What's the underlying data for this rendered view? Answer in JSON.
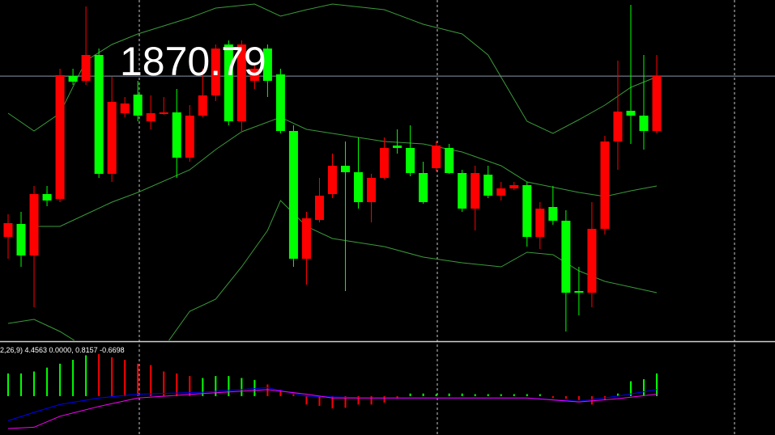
{
  "chart_data": {
    "type": "candlestick",
    "price_line": 1870.79,
    "ylim": [
      1838.2,
      1880.2
    ],
    "up_color": "#ff0000",
    "down_color": "#00ff00",
    "open": [
      1850.9,
      1852.5,
      1848.6,
      1856.2,
      1855.6,
      1870.8,
      1870.2,
      1873.4,
      1858.7,
      1866.2,
      1868.5,
      1865.2,
      1866.1,
      1866.3,
      1860.7,
      1865.9,
      1868.4,
      1874.7,
      1865.2,
      1870.2,
      1874.2,
      1871.0,
      1864.0,
      1848.2,
      1853.0,
      1856.2,
      1859.7,
      1858.9,
      1855.2,
      1858.2,
      1862.2,
      1861.9,
      1858.8,
      1859.4,
      1861.9,
      1858.8,
      1854.4,
      1858.6,
      1856.0,
      1856.9,
      1857.3,
      1850.9,
      1854.6,
      1852.9,
      1844.2,
      1844.0,
      1851.9,
      1862.7,
      1866.5,
      1865.9,
      1864.0
    ],
    "high": [
      1853.7,
      1854.0,
      1857.2,
      1857.2,
      1871.7,
      1871.7,
      1879.4,
      1874.2,
      1870.7,
      1868.2,
      1870.2,
      1868.4,
      1868.2,
      1869.2,
      1867.2,
      1871.7,
      1874.7,
      1875.2,
      1875.2,
      1872.2,
      1874.7,
      1871.7,
      1864.7,
      1854.0,
      1858.2,
      1861.2,
      1862.7,
      1863.2,
      1858.7,
      1863.2,
      1864.2,
      1864.7,
      1860.2,
      1862.7,
      1862.4,
      1859.2,
      1859.7,
      1859.7,
      1857.7,
      1857.7,
      1857.7,
      1855.2,
      1857.2,
      1854.2,
      1847.2,
      1855.2,
      1863.4,
      1872.7,
      1879.6,
      1873.4,
      1873.4
    ],
    "low": [
      1848.2,
      1847.2,
      1842.2,
      1854.7,
      1855.2,
      1869.7,
      1869.7,
      1858.2,
      1857.7,
      1865.7,
      1865.2,
      1864.2,
      1866.0,
      1858.2,
      1860.2,
      1865.7,
      1867.7,
      1864.7,
      1864.0,
      1869.2,
      1868.2,
      1863.7,
      1847.2,
      1845.0,
      1852.7,
      1855.7,
      1844.2,
      1854.4,
      1852.7,
      1858.0,
      1861.2,
      1858.4,
      1855.0,
      1859.0,
      1858.7,
      1854.0,
      1851.7,
      1855.7,
      1855.4,
      1856.7,
      1849.7,
      1849.4,
      1852.4,
      1839.2,
      1841.2,
      1842.2,
      1851.2,
      1859.2,
      1862.4,
      1861.7,
      1863.7
    ],
    "close": [
      1852.6,
      1848.6,
      1856.2,
      1855.4,
      1870.9,
      1870.1,
      1873.4,
      1858.7,
      1867.6,
      1867.4,
      1865.9,
      1866.2,
      1866.3,
      1860.7,
      1865.9,
      1868.4,
      1874.2,
      1865.2,
      1874.7,
      1871.7,
      1870.2,
      1864.0,
      1848.2,
      1853.2,
      1856.0,
      1859.7,
      1858.9,
      1855.2,
      1858.2,
      1861.9,
      1861.9,
      1858.8,
      1855.2,
      1862.2,
      1858.8,
      1854.4,
      1858.8,
      1856.0,
      1856.9,
      1857.3,
      1850.9,
      1854.4,
      1852.9,
      1844.0,
      1844.0,
      1851.9,
      1862.7,
      1866.4,
      1865.9,
      1864.0,
      1870.8
    ],
    "bands": [
      {
        "color": "#3a9a3a",
        "x": [
          0,
          2,
          4,
          6,
          8,
          10,
          14,
          16,
          19,
          21,
          23,
          25,
          29,
          32,
          35,
          37,
          40,
          42,
          44,
          46,
          48,
          50
        ],
        "values": [
          1866.2,
          1864.0,
          1866.2,
          1872.7,
          1874.7,
          1876.0,
          1878.0,
          1879.2,
          1879.7,
          1878.2,
          1879.0,
          1879.7,
          1879.0,
          1877.2,
          1876.0,
          1873.4,
          1865.2,
          1863.7,
          1865.4,
          1867.2,
          1869.4,
          1870.7
        ]
      },
      {
        "color": "#3a9a3a",
        "x": [
          2,
          4,
          6,
          8,
          10,
          14,
          16,
          18,
          21,
          23,
          25,
          29,
          32,
          35,
          38,
          40,
          44,
          46,
          48,
          50
        ],
        "values": [
          1852.2,
          1852.2,
          1853.7,
          1855.2,
          1856.4,
          1859.2,
          1861.7,
          1863.9,
          1865.7,
          1864.2,
          1863.7,
          1862.7,
          1862.4,
          1861.4,
          1859.7,
          1857.7,
          1856.4,
          1855.9,
          1856.6,
          1857.2
        ]
      },
      {
        "color": "#3a9a3a",
        "x": [
          0,
          2,
          4,
          6,
          9,
          12,
          14,
          16,
          18,
          20,
          21,
          23,
          25,
          29,
          32,
          35,
          38,
          40,
          42,
          44,
          46,
          48,
          50
        ],
        "values": [
          1840.2,
          1840.7,
          1839.2,
          1837.2,
          1836.2,
          1837.2,
          1841.7,
          1843.2,
          1847.2,
          1851.7,
          1855.4,
          1852.2,
          1850.7,
          1849.7,
          1848.4,
          1847.7,
          1847.2,
          1849.0,
          1848.7,
          1846.7,
          1845.4,
          1844.7,
          1844.0
        ]
      }
    ],
    "macd": {
      "label": "2,26,9) 4.4563 0.0000, 0.8157 -0.6698",
      "ylim": [
        -6,
        8.1
      ],
      "histogram": [
        3.5,
        3.5,
        3.8,
        4.4,
        5.0,
        5.6,
        6.3,
        6.5,
        6.0,
        5.6,
        5.0,
        4.8,
        3.8,
        3.5,
        3.1,
        2.8,
        3.1,
        3.1,
        2.8,
        2.5,
        1.8,
        1.0,
        0.3,
        -1.3,
        -1.5,
        -1.9,
        -1.8,
        -1.3,
        -1.3,
        -1.0,
        -0.4,
        0.4,
        0.4,
        0.3,
        0.4,
        0.4,
        0.3,
        0.3,
        0.3,
        0.3,
        0.3,
        0.3,
        -0.3,
        -0.4,
        -0.6,
        -1.3,
        -0.6,
        0.4,
        2.3,
        2.6,
        3.5
      ],
      "histogram_colors": [
        "#00ff00",
        "#00ff00",
        "#00ff00",
        "#00ff00",
        "#00ff00",
        "#00ff00",
        "#00ff00",
        "#ff0000",
        "#ff0000",
        "#ff0000",
        "#ff0000",
        "#ff0000",
        "#ff0000",
        "#ff0000",
        "#ff0000",
        "#00ff00",
        "#00ff00",
        "#00ff00",
        "#00ff00",
        "#00ff00",
        "#ff0000",
        "#ff0000",
        "#ff0000",
        "#ff0000",
        "#ff0000",
        "#ff0000",
        "#ff0000",
        "#ff0000",
        "#ff0000",
        "#ff0000",
        "#ff0000",
        "#00ff00",
        "#00ff00",
        "#00ff00",
        "#00ff00",
        "#00ff00",
        "#00ff00",
        "#00ff00",
        "#00ff00",
        "#00ff00",
        "#00ff00",
        "#00ff00",
        "#ff0000",
        "#ff0000",
        "#ff0000",
        "#ff0000",
        "#ff0000",
        "#00ff00",
        "#00ff00",
        "#00ff00",
        "#00ff00"
      ],
      "lines": [
        {
          "color": "#0000ff",
          "x": [
            0,
            2,
            4,
            7,
            10,
            15,
            20,
            23,
            28,
            31,
            40,
            44,
            47,
            50
          ],
          "values": [
            -3.8,
            -2.5,
            -1.3,
            -0.3,
            0.3,
            0.6,
            1.3,
            0,
            -0.3,
            -0.3,
            -0.3,
            -0.8,
            0,
            1.0
          ]
        },
        {
          "color": "#ff00ff",
          "x": [
            0,
            2,
            4,
            7,
            10,
            15,
            20,
            23,
            25,
            31,
            40,
            44,
            47,
            50
          ],
          "values": [
            -5.0,
            -4.8,
            -3.1,
            -1.6,
            -0.3,
            0.4,
            1.0,
            0.3,
            -0.3,
            -0.3,
            -0.3,
            -0.9,
            -0.4,
            0.3
          ]
        }
      ]
    }
  }
}
